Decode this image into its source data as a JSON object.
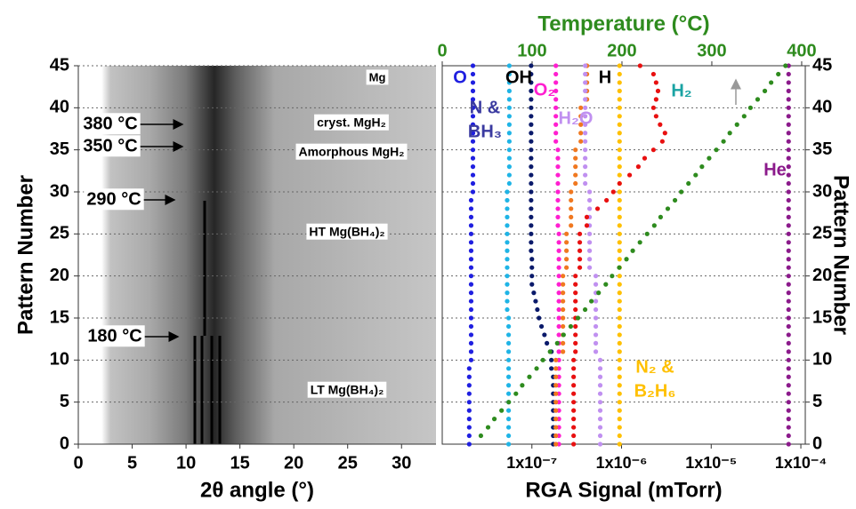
{
  "chart_data": [
    {
      "type": "image",
      "xlabel": "2θ angle (°)",
      "ylabel": "Pattern Number",
      "xlim": [
        0,
        33.2
      ],
      "ylim": [
        0,
        45
      ],
      "xticks": [
        0,
        5,
        10,
        15,
        20,
        25,
        30
      ],
      "yticks": [
        0,
        5,
        10,
        15,
        20,
        25,
        30,
        35,
        40,
        45
      ],
      "grid": true,
      "annotations": [
        "380 °C",
        "350 °C",
        "290 °C",
        "180 °C",
        "Mg",
        "cryst. MgH₂",
        "Amorphous MgH₂",
        "HT Mg(BH₄)₂",
        "LT Mg(BH₄)₂"
      ]
    },
    {
      "type": "scatter",
      "xlabel": "RGA Signal (mTorr)",
      "x2label": "Temperature (°C)",
      "ylabel": "Pattern Number",
      "log_x": true,
      "xlim": [
        1e-08,
        0.000112
      ],
      "xticks": [
        {
          "value": 1e-07,
          "label": "1x10⁻⁷"
        },
        {
          "value": 1e-06,
          "label": "1x10⁻⁶"
        },
        {
          "value": 1e-05,
          "label": "1x10⁻⁵"
        },
        {
          "value": 0.0001,
          "label": "1x10⁻⁴"
        }
      ],
      "x2lim": [
        0,
        404
      ],
      "x2ticks": [
        0,
        100,
        200,
        300,
        400
      ],
      "x2color": "#2e8b1e",
      "ylim": [
        0,
        45
      ],
      "yticks": [
        0,
        5,
        10,
        15,
        20,
        25,
        30,
        35,
        40,
        45
      ],
      "grid": true,
      "y": [
        0,
        1,
        2,
        3,
        4,
        5,
        6,
        7,
        8,
        9,
        10,
        11,
        12,
        13,
        14,
        15,
        16,
        17,
        18,
        19,
        20,
        21,
        22,
        23,
        24,
        25,
        26,
        27,
        28,
        29,
        30,
        31,
        32,
        33,
        34,
        35,
        36,
        37,
        38,
        39,
        40,
        41,
        42,
        43,
        44,
        45
      ],
      "series": [
        {
          "name": [
            "O"
          ],
          "color": "#1f1fe0",
          "label_color": "#1f1fe0",
          "values": [
            2e-08,
            2e-08,
            2e-08,
            2e-08,
            2e-08,
            2e-08,
            2e-08,
            2e-08,
            2e-08,
            2e-08,
            2.1e-08,
            2.1e-08,
            2.1e-08,
            2.1e-08,
            2.1e-08,
            2.1e-08,
            2.1e-08,
            2.1e-08,
            2.1e-08,
            2.1e-08,
            2.1e-08,
            2.1e-08,
            2.1e-08,
            2.1e-08,
            2.1e-08,
            2.1e-08,
            2.1e-08,
            2.1e-08,
            2.1e-08,
            2.1e-08,
            2.2e-08,
            2.2e-08,
            2.2e-08,
            2.2e-08,
            2.2e-08,
            2.2e-08,
            2.2e-08,
            2.2e-08,
            2.2e-08,
            2.2e-08,
            2.2e-08,
            2.2e-08,
            2.2e-08,
            2.2e-08,
            2.2e-08,
            2.2e-08
          ]
        },
        {
          "name": [
            "N &",
            "BH₃"
          ],
          "color": "#1fb4e6",
          "label_color": "#3a3aa0",
          "values": [
            5.5e-08,
            5.5e-08,
            5.5e-08,
            5.5e-08,
            5.5e-08,
            5.5e-08,
            5.5e-08,
            5.5e-08,
            5.5e-08,
            5.5e-08,
            5.5e-08,
            5.5e-08,
            5.5e-08,
            5.5e-08,
            5.5e-08,
            5.5e-08,
            5.3e-08,
            5.3e-08,
            5.3e-08,
            5.3e-08,
            5.3e-08,
            5.3e-08,
            5.3e-08,
            5.3e-08,
            5.3e-08,
            5.3e-08,
            5.3e-08,
            5.3e-08,
            5.3e-08,
            5.3e-08,
            5.3e-08,
            5.6e-08,
            5.6e-08,
            5.6e-08,
            5.6e-08,
            5.6e-08,
            5.6e-08,
            5.6e-08,
            5.6e-08,
            5.6e-08,
            5.6e-08,
            5.6e-08,
            5.6e-08,
            5.6e-08,
            5.6e-08,
            5.6e-08
          ]
        },
        {
          "name": [
            "OH"
          ],
          "color": "#0a1a6a",
          "label_color": "#000000",
          "values": [
            1.73e-07,
            1.73e-07,
            1.73e-07,
            1.73e-07,
            1.73e-07,
            1.73e-07,
            1.73e-07,
            1.73e-07,
            1.73e-07,
            1.65e-07,
            1.65e-07,
            1.65e-07,
            1.47e-07,
            1.38e-07,
            1.28e-07,
            1.2e-07,
            1.15e-07,
            1.1e-07,
            1.05e-07,
            1e-07,
            1e-07,
            1e-07,
            1e-07,
            9.8e-08,
            9.8e-08,
            9.8e-08,
            9.8e-08,
            9.8e-08,
            9.8e-08,
            9.8e-08,
            9.8e-08,
            9.8e-08,
            9.8e-08,
            9.8e-08,
            9.8e-08,
            9.8e-08,
            9.8e-08,
            9.8e-08,
            9.8e-08,
            9.8e-08,
            9.8e-08,
            9.8e-08,
            9.8e-08,
            9.8e-08,
            9.8e-08,
            9.8e-08
          ]
        },
        {
          "name": [
            "O₂"
          ],
          "color": "#ff1fd0",
          "label_color": "#ff1fd0",
          "values": [
            2e-07,
            2e-07,
            2e-07,
            2e-07,
            2e-07,
            2e-07,
            2e-07,
            2e-07,
            2e-07,
            2e-07,
            2e-07,
            2e-07,
            2e-07,
            2e-07,
            2e-07,
            2e-07,
            2e-07,
            2e-07,
            2e-07,
            2e-07,
            2e-07,
            2e-07,
            2e-07,
            2e-07,
            2e-07,
            2e-07,
            1.95e-07,
            1.95e-07,
            1.95e-07,
            1.95e-07,
            1.95e-07,
            1.95e-07,
            1.95e-07,
            1.95e-07,
            1.95e-07,
            1.95e-07,
            1.85e-07,
            1.85e-07,
            1.85e-07,
            1.85e-07,
            1.85e-07,
            1.85e-07,
            1.85e-07,
            1.85e-07,
            1.85e-07,
            1.85e-07
          ]
        },
        {
          "name": [
            "H"
          ],
          "color": "#f07820",
          "label_color": "#000000",
          "values": [
            1.85e-07,
            1.85e-07,
            1.85e-07,
            1.85e-07,
            1.85e-07,
            1.85e-07,
            1.85e-07,
            1.85e-07,
            1.85e-07,
            1.85e-07,
            1.85e-07,
            2.22e-07,
            2.22e-07,
            2.22e-07,
            2.22e-07,
            2.22e-07,
            2.22e-07,
            2.22e-07,
            2.22e-07,
            2.22e-07,
            2.22e-07,
            2.43e-07,
            2.43e-07,
            2.43e-07,
            2.43e-07,
            2.43e-07,
            2.73e-07,
            2.73e-07,
            2.73e-07,
            2.73e-07,
            2.73e-07,
            3.06e-07,
            3.06e-07,
            3.06e-07,
            3.06e-07,
            3.06e-07,
            3.51e-07,
            3.51e-07,
            3.51e-07,
            3.51e-07,
            3.51e-07,
            4.11e-07,
            4.11e-07,
            4.11e-07,
            4.11e-07,
            4.11e-07
          ]
        },
        {
          "name": [
            "H₂O"
          ],
          "color": "#c090f0",
          "label_color": "#c090f0",
          "values": [
            5.78e-07,
            5.78e-07,
            5.78e-07,
            5.78e-07,
            5.78e-07,
            5.78e-07,
            5.78e-07,
            5.78e-07,
            5.78e-07,
            5.78e-07,
            5.78e-07,
            5.16e-07,
            5.16e-07,
            5.16e-07,
            5.16e-07,
            5.16e-07,
            5.16e-07,
            5.16e-07,
            5.16e-07,
            5.16e-07,
            5.16e-07,
            4.4e-07,
            4.4e-07,
            4.4e-07,
            4.4e-07,
            4.4e-07,
            4.4e-07,
            4.4e-07,
            4.4e-07,
            4.4e-07,
            4.4e-07,
            3.93e-07,
            3.93e-07,
            3.93e-07,
            3.93e-07,
            3.93e-07,
            3.93e-07,
            3.93e-07,
            3.93e-07,
            3.93e-07,
            3.93e-07,
            3.93e-07,
            3.93e-07,
            3.93e-07,
            3.93e-07,
            3.93e-07
          ]
        },
        {
          "name": [
            "N₂ &",
            "B₂H₆"
          ],
          "color": "#ffc000",
          "label_color": "#ffc000",
          "values": [
            9.5e-07,
            9.5e-07,
            9.5e-07,
            9.5e-07,
            9.5e-07,
            9.5e-07,
            9.5e-07,
            9.5e-07,
            9.5e-07,
            9.5e-07,
            9.5e-07,
            9.5e-07,
            9.5e-07,
            9.5e-07,
            9.5e-07,
            9.5e-07,
            9.5e-07,
            9.5e-07,
            9.5e-07,
            9.5e-07,
            9.5e-07,
            9.5e-07,
            9.5e-07,
            9.5e-07,
            9.5e-07,
            9.5e-07,
            9.5e-07,
            9.5e-07,
            9.5e-07,
            9.5e-07,
            9.5e-07,
            9.5e-07,
            9.5e-07,
            9.5e-07,
            9.5e-07,
            9.5e-07,
            9.5e-07,
            9.5e-07,
            9.5e-07,
            9.5e-07,
            9.5e-07,
            9.5e-07,
            9.5e-07,
            9.5e-07,
            9.5e-07,
            9.5e-07
          ]
        },
        {
          "name": [
            "H₂"
          ],
          "color": "#e81010",
          "label_color": "#1aa3a3",
          "values": [
            2.92e-07,
            2.92e-07,
            2.92e-07,
            2.92e-07,
            2.92e-07,
            2.92e-07,
            2.92e-07,
            2.92e-07,
            2.92e-07,
            2.92e-07,
            2.92e-07,
            3.06e-07,
            3.06e-07,
            3.06e-07,
            3.06e-07,
            3.06e-07,
            3.06e-07,
            3.06e-07,
            3.06e-07,
            3.06e-07,
            3.06e-07,
            3.42e-07,
            3.42e-07,
            3.42e-07,
            3.42e-07,
            3.42e-07,
            4.1e-07,
            4.1e-07,
            5.4e-07,
            6.8e-07,
            8.1e-07,
            9.5e-07,
            1.23e-06,
            1.54e-06,
            1.81e-06,
            2.27e-06,
            2.85e-06,
            3.05e-06,
            2.69e-06,
            2.43e-06,
            2.27e-06,
            2.43e-06,
            2.55e-06,
            2.43e-06,
            2.27e-06,
            1.61e-06
          ]
        },
        {
          "name": [
            "He"
          ],
          "color": "#8b1a8b",
          "label_color": "#8b1a8b",
          "values": [
            7.3e-05,
            7.3e-05,
            7.3e-05,
            7.3e-05,
            7.3e-05,
            7.3e-05,
            7.3e-05,
            7.3e-05,
            7.3e-05,
            7.3e-05,
            7.3e-05,
            7.3e-05,
            7.3e-05,
            7.3e-05,
            7.3e-05,
            7.3e-05,
            7.3e-05,
            7.3e-05,
            7.3e-05,
            7.3e-05,
            7.3e-05,
            7.3e-05,
            7.3e-05,
            7.3e-05,
            7.3e-05,
            7.3e-05,
            7.3e-05,
            7.3e-05,
            7.3e-05,
            7.3e-05,
            7.3e-05,
            7.3e-05,
            7.3e-05,
            7.3e-05,
            7.3e-05,
            7.3e-05,
            7.3e-05,
            7.3e-05,
            7.3e-05,
            7.3e-05,
            7.3e-05,
            7.3e-05,
            7.3e-05,
            7.3e-05,
            7.3e-05,
            7.3e-05
          ]
        },
        {
          "axis": "x2",
          "color": "#2e8b1e",
          "values": [
            null,
            43,
            51,
            58,
            66,
            74,
            82,
            89,
            97,
            105,
            112,
            120,
            128,
            135,
            143,
            151,
            159,
            166,
            174,
            182,
            189,
            197,
            205,
            212,
            220,
            228,
            236,
            243,
            251,
            259,
            266,
            274,
            282,
            289,
            297,
            305,
            313,
            320,
            328,
            336,
            343,
            351,
            359,
            366,
            374,
            382
          ]
        }
      ]
    }
  ]
}
